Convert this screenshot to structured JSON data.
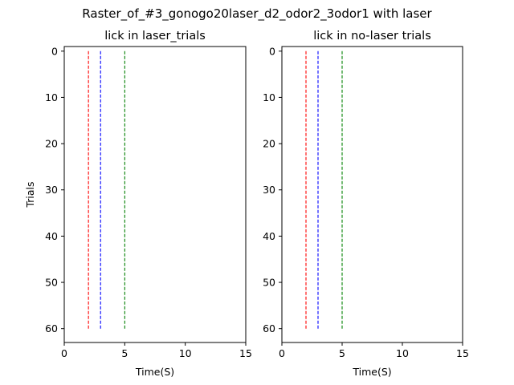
{
  "figure": {
    "title": "Raster_of_#3_gonogo20laser_d2_odor2_3odor1 with laser"
  },
  "chart_data": [
    {
      "type": "raster",
      "title": "lick in laser_trials",
      "xlabel": "Time(S)",
      "ylabel": "Trials",
      "xlim": [
        0,
        15
      ],
      "ylim": [
        63,
        -1
      ],
      "y_inverted": true,
      "xticks": [
        0,
        5,
        10,
        15
      ],
      "yticks": [
        0,
        10,
        20,
        30,
        40,
        50,
        60
      ],
      "grid": false,
      "events": [],
      "vlines": [
        {
          "x": 2,
          "y_range": [
            0,
            60
          ],
          "color": "#ff0000",
          "style": "dashed"
        },
        {
          "x": 3,
          "y_range": [
            0,
            60
          ],
          "color": "#0000ff",
          "style": "dashed"
        },
        {
          "x": 5,
          "y_range": [
            0,
            60
          ],
          "color": "#008000",
          "style": "dashed"
        }
      ]
    },
    {
      "type": "raster",
      "title": "lick in no-laser trials",
      "xlabel": "Time(S)",
      "ylabel": "",
      "xlim": [
        0,
        15
      ],
      "ylim": [
        63,
        -1
      ],
      "y_inverted": true,
      "xticks": [
        0,
        5,
        10,
        15
      ],
      "yticks": [
        0,
        10,
        20,
        30,
        40,
        50,
        60
      ],
      "grid": false,
      "events": [],
      "vlines": [
        {
          "x": 2,
          "y_range": [
            0,
            60
          ],
          "color": "#ff0000",
          "style": "dashed"
        },
        {
          "x": 3,
          "y_range": [
            0,
            60
          ],
          "color": "#0000ff",
          "style": "dashed"
        },
        {
          "x": 5,
          "y_range": [
            0,
            60
          ],
          "color": "#008000",
          "style": "dashed"
        }
      ]
    }
  ]
}
